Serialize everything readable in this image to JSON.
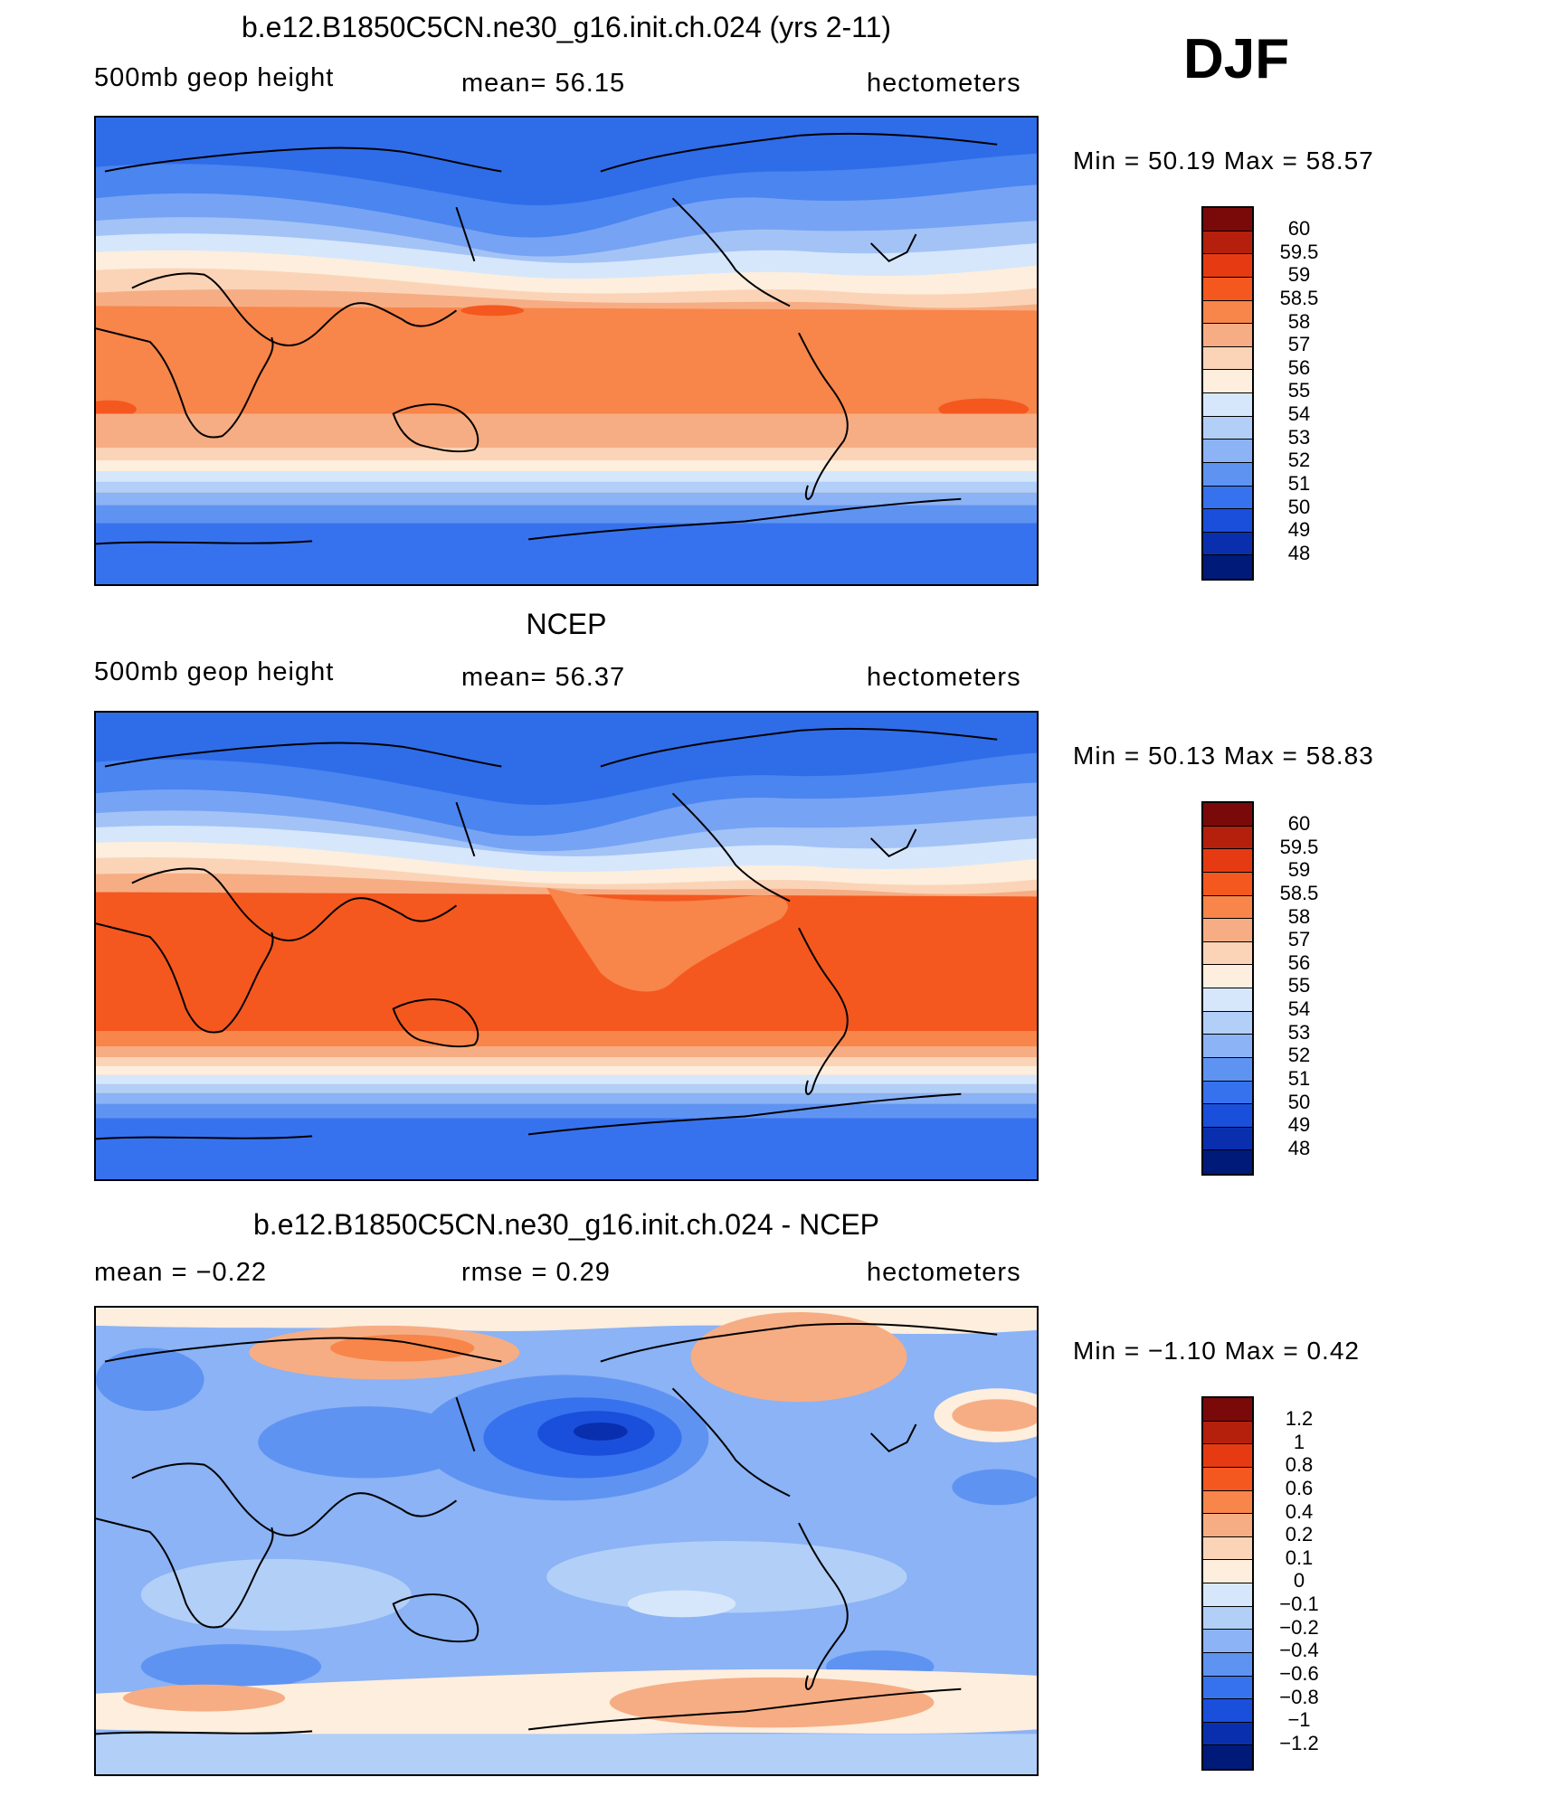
{
  "season": "DJF",
  "panels": [
    {
      "title": "b.e12.B1850C5CN.ne30_g16.init.ch.024 (yrs 2-11)",
      "left_label": "500mb geop height",
      "mid_label": "mean=   56.15",
      "right_label": "hectometers",
      "stats": "Min =   50.19 Max =   58.57",
      "colorbar_labels": [
        "60",
        "59.5",
        "59",
        "58.5",
        "58",
        "57",
        "56",
        "55",
        "54",
        "53",
        "52",
        "51",
        "50",
        "49",
        "48"
      ],
      "colorbar_colors": [
        "#7a0a0a",
        "#b5200d",
        "#e63b12",
        "#f4581f",
        "#f8854a",
        "#f6ad84",
        "#fbd4b7",
        "#fdeedd",
        "#d6e7fb",
        "#b2cff8",
        "#8bb3f5",
        "#5f93f2",
        "#3772ee",
        "#1a4fdc",
        "#0a2fae",
        "#001a7a"
      ]
    },
    {
      "title": "NCEP",
      "left_label": "500mb geop height",
      "mid_label": "mean=   56.37",
      "right_label": "hectometers",
      "stats": "Min =   50.13 Max =   58.83",
      "colorbar_labels": [
        "60",
        "59.5",
        "59",
        "58.5",
        "58",
        "57",
        "56",
        "55",
        "54",
        "53",
        "52",
        "51",
        "50",
        "49",
        "48"
      ],
      "colorbar_colors": [
        "#7a0a0a",
        "#b5200d",
        "#e63b12",
        "#f4581f",
        "#f8854a",
        "#f6ad84",
        "#fbd4b7",
        "#fdeedd",
        "#d6e7fb",
        "#b2cff8",
        "#8bb3f5",
        "#5f93f2",
        "#3772ee",
        "#1a4fdc",
        "#0a2fae",
        "#001a7a"
      ]
    },
    {
      "title": "b.e12.B1850C5CN.ne30_g16.init.ch.024 - NCEP",
      "left_label": "mean =   −0.22",
      "mid_label": "rmse =    0.29",
      "right_label": "hectometers",
      "stats": "Min =   −1.10 Max =    0.42",
      "colorbar_labels": [
        "1.2",
        "1",
        "0.8",
        "0.6",
        "0.4",
        "0.2",
        "0.1",
        "0",
        "−0.1",
        "−0.2",
        "−0.4",
        "−0.6",
        "−0.8",
        "−1",
        "−1.2"
      ],
      "colorbar_colors": [
        "#7a0a0a",
        "#b5200d",
        "#e63b12",
        "#f4581f",
        "#f8854a",
        "#f6ad84",
        "#fbd4b7",
        "#fdeedd",
        "#d6e7fb",
        "#b2cff8",
        "#8bb3f5",
        "#5f93f2",
        "#3772ee",
        "#1a4fdc",
        "#0a2fae",
        "#001a7a"
      ]
    }
  ]
}
